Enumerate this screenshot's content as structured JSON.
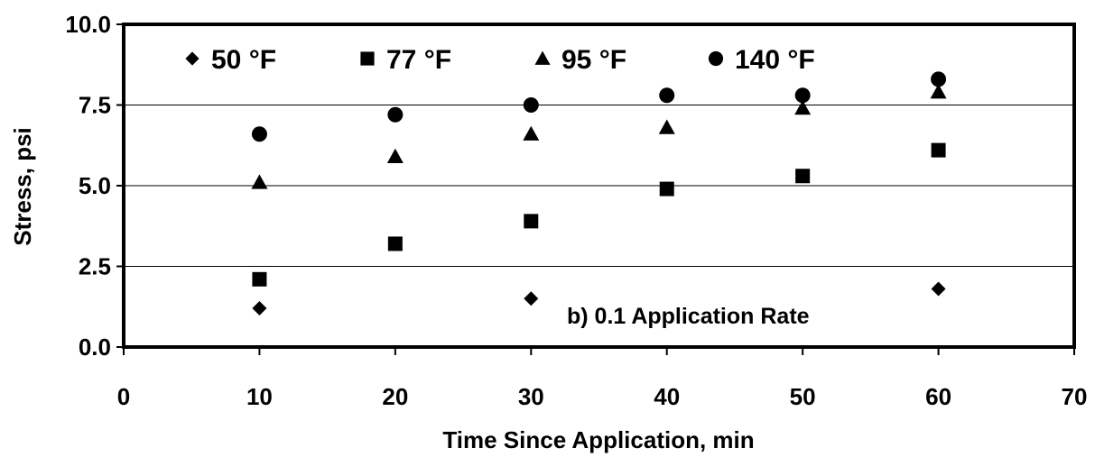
{
  "chart_data": {
    "type": "scatter",
    "title": "",
    "xlabel": "Time Since Application, min",
    "ylabel": "Stress, psi",
    "xlim": [
      0,
      70
    ],
    "ylim": [
      0,
      10
    ],
    "x_ticks": [
      "0",
      "10",
      "20",
      "30",
      "40",
      "50",
      "60",
      "70"
    ],
    "y_ticks": [
      "0.0",
      "2.5",
      "5.0",
      "7.5",
      "10.0"
    ],
    "grid": "horizontal",
    "legend_position": "top",
    "annotation": "b) 0.1 Application Rate",
    "series": [
      {
        "name": "50 °F",
        "marker": "diamond",
        "x": [
          10,
          30,
          60
        ],
        "y": [
          1.2,
          1.5,
          1.8
        ]
      },
      {
        "name": "77 °F",
        "marker": "square",
        "x": [
          10,
          20,
          30,
          40,
          50,
          60
        ],
        "y": [
          2.1,
          3.2,
          3.9,
          4.9,
          5.3,
          6.1
        ]
      },
      {
        "name": "95 °F",
        "marker": "triangle",
        "x": [
          10,
          20,
          30,
          40,
          50,
          60
        ],
        "y": [
          5.1,
          5.9,
          6.6,
          6.8,
          7.4,
          7.9
        ]
      },
      {
        "name": "140 °F",
        "marker": "circle",
        "x": [
          10,
          20,
          30,
          40,
          50,
          60
        ],
        "y": [
          6.6,
          7.2,
          7.5,
          7.8,
          7.8,
          8.3
        ]
      }
    ]
  }
}
